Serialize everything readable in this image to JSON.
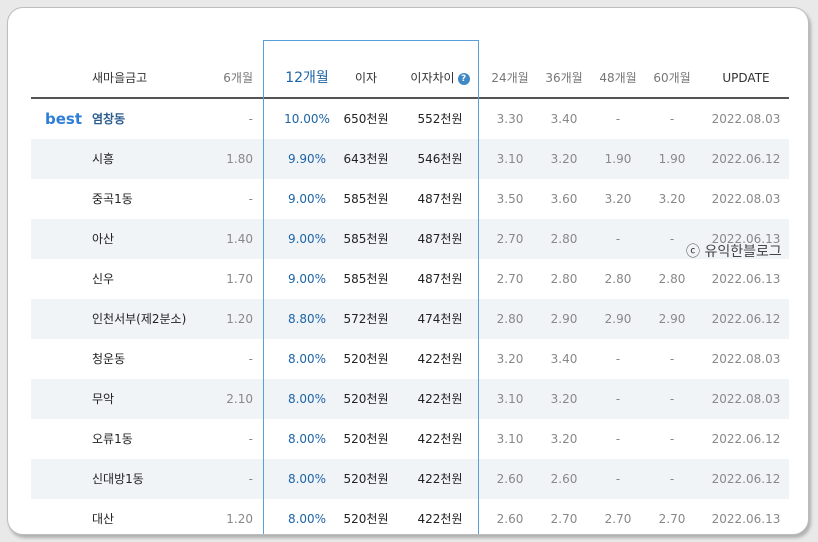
{
  "table": {
    "headers": {
      "name": "새마을금고",
      "m6": "6개월",
      "m12": "12개월",
      "interest": "이자",
      "diff": "이자차이",
      "m24": "24개월",
      "m36": "36개월",
      "m48": "48개월",
      "m60": "60개월",
      "update": "UPDATE"
    },
    "best_label": "best",
    "rows": [
      {
        "name": "염창동",
        "m6": "-",
        "m12": "10.00%",
        "interest": "650천원",
        "diff": "552천원",
        "m24": "3.30",
        "m36": "3.40",
        "m48": "-",
        "m60": "-",
        "update": "2022.08.03"
      },
      {
        "name": "시흥",
        "m6": "1.80",
        "m12": "9.90%",
        "interest": "643천원",
        "diff": "546천원",
        "m24": "3.10",
        "m36": "3.20",
        "m48": "1.90",
        "m60": "1.90",
        "update": "2022.06.12"
      },
      {
        "name": "중곡1동",
        "m6": "-",
        "m12": "9.00%",
        "interest": "585천원",
        "diff": "487천원",
        "m24": "3.50",
        "m36": "3.60",
        "m48": "3.20",
        "m60": "3.20",
        "update": "2022.08.03"
      },
      {
        "name": "아산",
        "m6": "1.40",
        "m12": "9.00%",
        "interest": "585천원",
        "diff": "487천원",
        "m24": "2.70",
        "m36": "2.80",
        "m48": "-",
        "m60": "-",
        "update": "2022.06.13"
      },
      {
        "name": "신우",
        "m6": "1.70",
        "m12": "9.00%",
        "interest": "585천원",
        "diff": "487천원",
        "m24": "2.70",
        "m36": "2.80",
        "m48": "2.80",
        "m60": "2.80",
        "update": "2022.06.13"
      },
      {
        "name": "인천서부(제2분소)",
        "m6": "1.20",
        "m12": "8.80%",
        "interest": "572천원",
        "diff": "474천원",
        "m24": "2.80",
        "m36": "2.90",
        "m48": "2.90",
        "m60": "2.90",
        "update": "2022.06.12"
      },
      {
        "name": "청운동",
        "m6": "-",
        "m12": "8.00%",
        "interest": "520천원",
        "diff": "422천원",
        "m24": "3.20",
        "m36": "3.40",
        "m48": "-",
        "m60": "-",
        "update": "2022.08.03"
      },
      {
        "name": "무악",
        "m6": "2.10",
        "m12": "8.00%",
        "interest": "520천원",
        "diff": "422천원",
        "m24": "3.10",
        "m36": "3.20",
        "m48": "-",
        "m60": "-",
        "update": "2022.08.03"
      },
      {
        "name": "오류1동",
        "m6": "-",
        "m12": "8.00%",
        "interest": "520천원",
        "diff": "422천원",
        "m24": "3.10",
        "m36": "3.20",
        "m48": "-",
        "m60": "-",
        "update": "2022.06.12"
      },
      {
        "name": "신대방1동",
        "m6": "-",
        "m12": "8.00%",
        "interest": "520천원",
        "diff": "422천원",
        "m24": "2.60",
        "m36": "2.60",
        "m48": "-",
        "m60": "-",
        "update": "2022.06.12"
      },
      {
        "name": "대산",
        "m6": "1.20",
        "m12": "8.00%",
        "interest": "520천원",
        "diff": "422천원",
        "m24": "2.60",
        "m36": "2.70",
        "m48": "2.70",
        "m60": "2.70",
        "update": "2022.06.13"
      }
    ]
  },
  "watermark": "ⓒ 유익한블로그",
  "icons": {
    "diff_info": "question-info-icon"
  },
  "colors": {
    "accent": "#1d64a6",
    "best": "#2e7dd6",
    "highlight_border": "#5b9fd8",
    "alt_row": "#f1f4f7"
  }
}
